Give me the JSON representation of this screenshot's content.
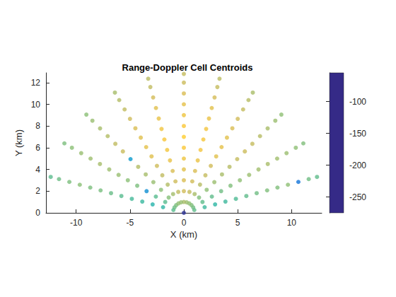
{
  "chart_data": {
    "type": "scatter",
    "title": "Range-Doppler Cell Centroids",
    "xlabel": "X (km)",
    "ylabel": "Y (km)",
    "xlim": [
      -12.8,
      12.8
    ],
    "ylim": [
      0,
      12.9
    ],
    "xticks": [
      -10,
      -5,
      0,
      5,
      10
    ],
    "yticks": [
      0,
      2,
      4,
      6,
      8,
      10,
      12
    ],
    "colorbar": {
      "clim": [
        -275,
        -55
      ],
      "cticks": [
        -250,
        -200,
        -150,
        -100
      ]
    },
    "points": [
      [
        0,
        0,
        -270
      ],
      [
        0.97,
        0.26,
        -150
      ],
      [
        0.87,
        0.5,
        -145
      ],
      [
        0.71,
        0.71,
        -140
      ],
      [
        0.5,
        0.87,
        -135
      ],
      [
        0.26,
        0.97,
        -130
      ],
      [
        0,
        1,
        -125
      ],
      [
        -0.97,
        0.26,
        -152
      ],
      [
        -0.87,
        0.5,
        -146
      ],
      [
        -0.71,
        0.71,
        -141
      ],
      [
        -0.5,
        0.87,
        -134
      ],
      [
        -0.26,
        0.97,
        -131
      ],
      [
        1.93,
        0.52,
        -160
      ],
      [
        1.73,
        1,
        -150
      ],
      [
        1.41,
        1.41,
        -140
      ],
      [
        1,
        1.73,
        -125
      ],
      [
        0.52,
        1.93,
        -115
      ],
      [
        0,
        2,
        -110
      ],
      [
        -1.93,
        0.52,
        -165
      ],
      [
        -1.73,
        1,
        -152
      ],
      [
        -1.41,
        1.41,
        -138
      ],
      [
        -1,
        1.73,
        -127
      ],
      [
        -0.52,
        1.93,
        -116
      ],
      [
        2.9,
        0.78,
        -165
      ],
      [
        2.6,
        1.5,
        -150
      ],
      [
        2.12,
        2.12,
        -135
      ],
      [
        1.5,
        2.6,
        -120
      ],
      [
        0.78,
        2.9,
        -110
      ],
      [
        0,
        3,
        -105
      ],
      [
        -2.9,
        0.78,
        -170
      ],
      [
        -2.6,
        1.5,
        -152
      ],
      [
        -2.12,
        2.12,
        -136
      ],
      [
        -1.5,
        2.6,
        -121
      ],
      [
        -0.78,
        2.9,
        -111
      ],
      [
        3.86,
        1.04,
        -160
      ],
      [
        3.46,
        2,
        -145
      ],
      [
        2.83,
        2.83,
        -130
      ],
      [
        2,
        3.46,
        -115
      ],
      [
        1.04,
        3.86,
        -105
      ],
      [
        0,
        4,
        -100
      ],
      [
        -3.86,
        1.04,
        -162
      ],
      [
        -3.46,
        2,
        -210
      ],
      [
        -2.83,
        2.83,
        -131
      ],
      [
        -2,
        3.46,
        -116
      ],
      [
        -1.04,
        3.86,
        -106
      ],
      [
        4.83,
        1.29,
        -155
      ],
      [
        4.33,
        2.5,
        -140
      ],
      [
        3.54,
        3.54,
        -125
      ],
      [
        2.5,
        4.33,
        -110
      ],
      [
        1.29,
        4.83,
        -95
      ],
      [
        0,
        5,
        -92
      ],
      [
        -4.83,
        1.29,
        -158
      ],
      [
        -4.33,
        2.5,
        -141
      ],
      [
        -3.54,
        3.54,
        -126
      ],
      [
        -2.5,
        4.33,
        -111
      ],
      [
        -1.29,
        4.83,
        -96
      ],
      [
        5.8,
        1.55,
        -150
      ],
      [
        5.2,
        3,
        -135
      ],
      [
        4.24,
        4.24,
        -120
      ],
      [
        3,
        5.2,
        -100
      ],
      [
        1.55,
        5.8,
        -90
      ],
      [
        0,
        6,
        -85
      ],
      [
        -5.8,
        1.55,
        -152
      ],
      [
        -5.2,
        3,
        -136
      ],
      [
        -4.24,
        4.24,
        -121
      ],
      [
        -3,
        5.2,
        -101
      ],
      [
        -1.55,
        5.8,
        -89
      ],
      [
        6.76,
        1.81,
        -145
      ],
      [
        6.06,
        3.5,
        -130
      ],
      [
        4.95,
        4.95,
        -115
      ],
      [
        3.5,
        6.06,
        -98
      ],
      [
        1.81,
        6.76,
        -88
      ],
      [
        0,
        7,
        -80
      ],
      [
        -6.76,
        1.81,
        -147
      ],
      [
        -6.06,
        3.5,
        -131
      ],
      [
        -4.95,
        4.95,
        -200
      ],
      [
        -3.5,
        6.06,
        -99
      ],
      [
        -1.81,
        6.76,
        -87
      ],
      [
        7.73,
        2.07,
        -140
      ],
      [
        6.93,
        4,
        -128
      ],
      [
        5.66,
        5.66,
        -112
      ],
      [
        4,
        6.93,
        -100
      ],
      [
        2.07,
        7.73,
        -90
      ],
      [
        0,
        8,
        -85
      ],
      [
        -7.73,
        2.07,
        -142
      ],
      [
        -6.93,
        4,
        -129
      ],
      [
        -5.66,
        5.66,
        -113
      ],
      [
        -4,
        6.93,
        -101
      ],
      [
        -2.07,
        7.73,
        -91
      ],
      [
        8.69,
        2.33,
        -140
      ],
      [
        7.79,
        4.5,
        -125
      ],
      [
        6.36,
        6.36,
        -115
      ],
      [
        4.5,
        7.79,
        -105
      ],
      [
        2.33,
        8.69,
        -95
      ],
      [
        0,
        9,
        -92
      ],
      [
        -8.69,
        2.33,
        -141
      ],
      [
        -7.79,
        4.5,
        -126
      ],
      [
        -6.36,
        6.36,
        -116
      ],
      [
        -4.5,
        7.79,
        -106
      ],
      [
        -2.33,
        8.69,
        -96
      ],
      [
        9.66,
        2.59,
        -135
      ],
      [
        8.66,
        5,
        -128
      ],
      [
        7.07,
        7.07,
        -120
      ],
      [
        5,
        8.66,
        -110
      ],
      [
        2.59,
        9.66,
        -100
      ],
      [
        0,
        10,
        -98
      ],
      [
        -9.66,
        2.59,
        -136
      ],
      [
        -8.66,
        5,
        -129
      ],
      [
        -7.07,
        7.07,
        -121
      ],
      [
        -5,
        8.66,
        -111
      ],
      [
        -2.59,
        9.66,
        -101
      ],
      [
        10.63,
        2.85,
        -230
      ],
      [
        9.53,
        5.5,
        -130
      ],
      [
        7.78,
        7.78,
        -125
      ],
      [
        5.5,
        9.53,
        -115
      ],
      [
        2.85,
        10.63,
        -108
      ],
      [
        0,
        11,
        -105
      ],
      [
        -10.63,
        2.85,
        -141
      ],
      [
        -9.53,
        5.5,
        -131
      ],
      [
        -7.78,
        7.78,
        -126
      ],
      [
        -5.5,
        9.53,
        -116
      ],
      [
        -2.85,
        10.63,
        -109
      ],
      [
        11.59,
        3.11,
        -145
      ],
      [
        10.39,
        6,
        -135
      ],
      [
        8.49,
        8.49,
        -130
      ],
      [
        6,
        10.39,
        -120
      ],
      [
        3.11,
        11.59,
        -115
      ],
      [
        0,
        12,
        -112
      ],
      [
        -11.59,
        3.11,
        -146
      ],
      [
        -10.39,
        6,
        -136
      ],
      [
        -8.49,
        8.49,
        -131
      ],
      [
        -6,
        10.39,
        -121
      ],
      [
        -3.11,
        11.59,
        -116
      ],
      [
        12.36,
        3.31,
        -150
      ],
      [
        11.09,
        6.4,
        -140
      ],
      [
        9.05,
        9.05,
        -135
      ],
      [
        6.4,
        11.08,
        -125
      ],
      [
        3.31,
        12.36,
        -118
      ],
      [
        0,
        12.8,
        -115
      ],
      [
        -12.36,
        3.31,
        -151
      ],
      [
        -11.09,
        6.4,
        -141
      ],
      [
        -9.05,
        9.05,
        -136
      ],
      [
        -6.4,
        11.08,
        -126
      ],
      [
        -3.31,
        12.36,
        -119
      ]
    ]
  }
}
